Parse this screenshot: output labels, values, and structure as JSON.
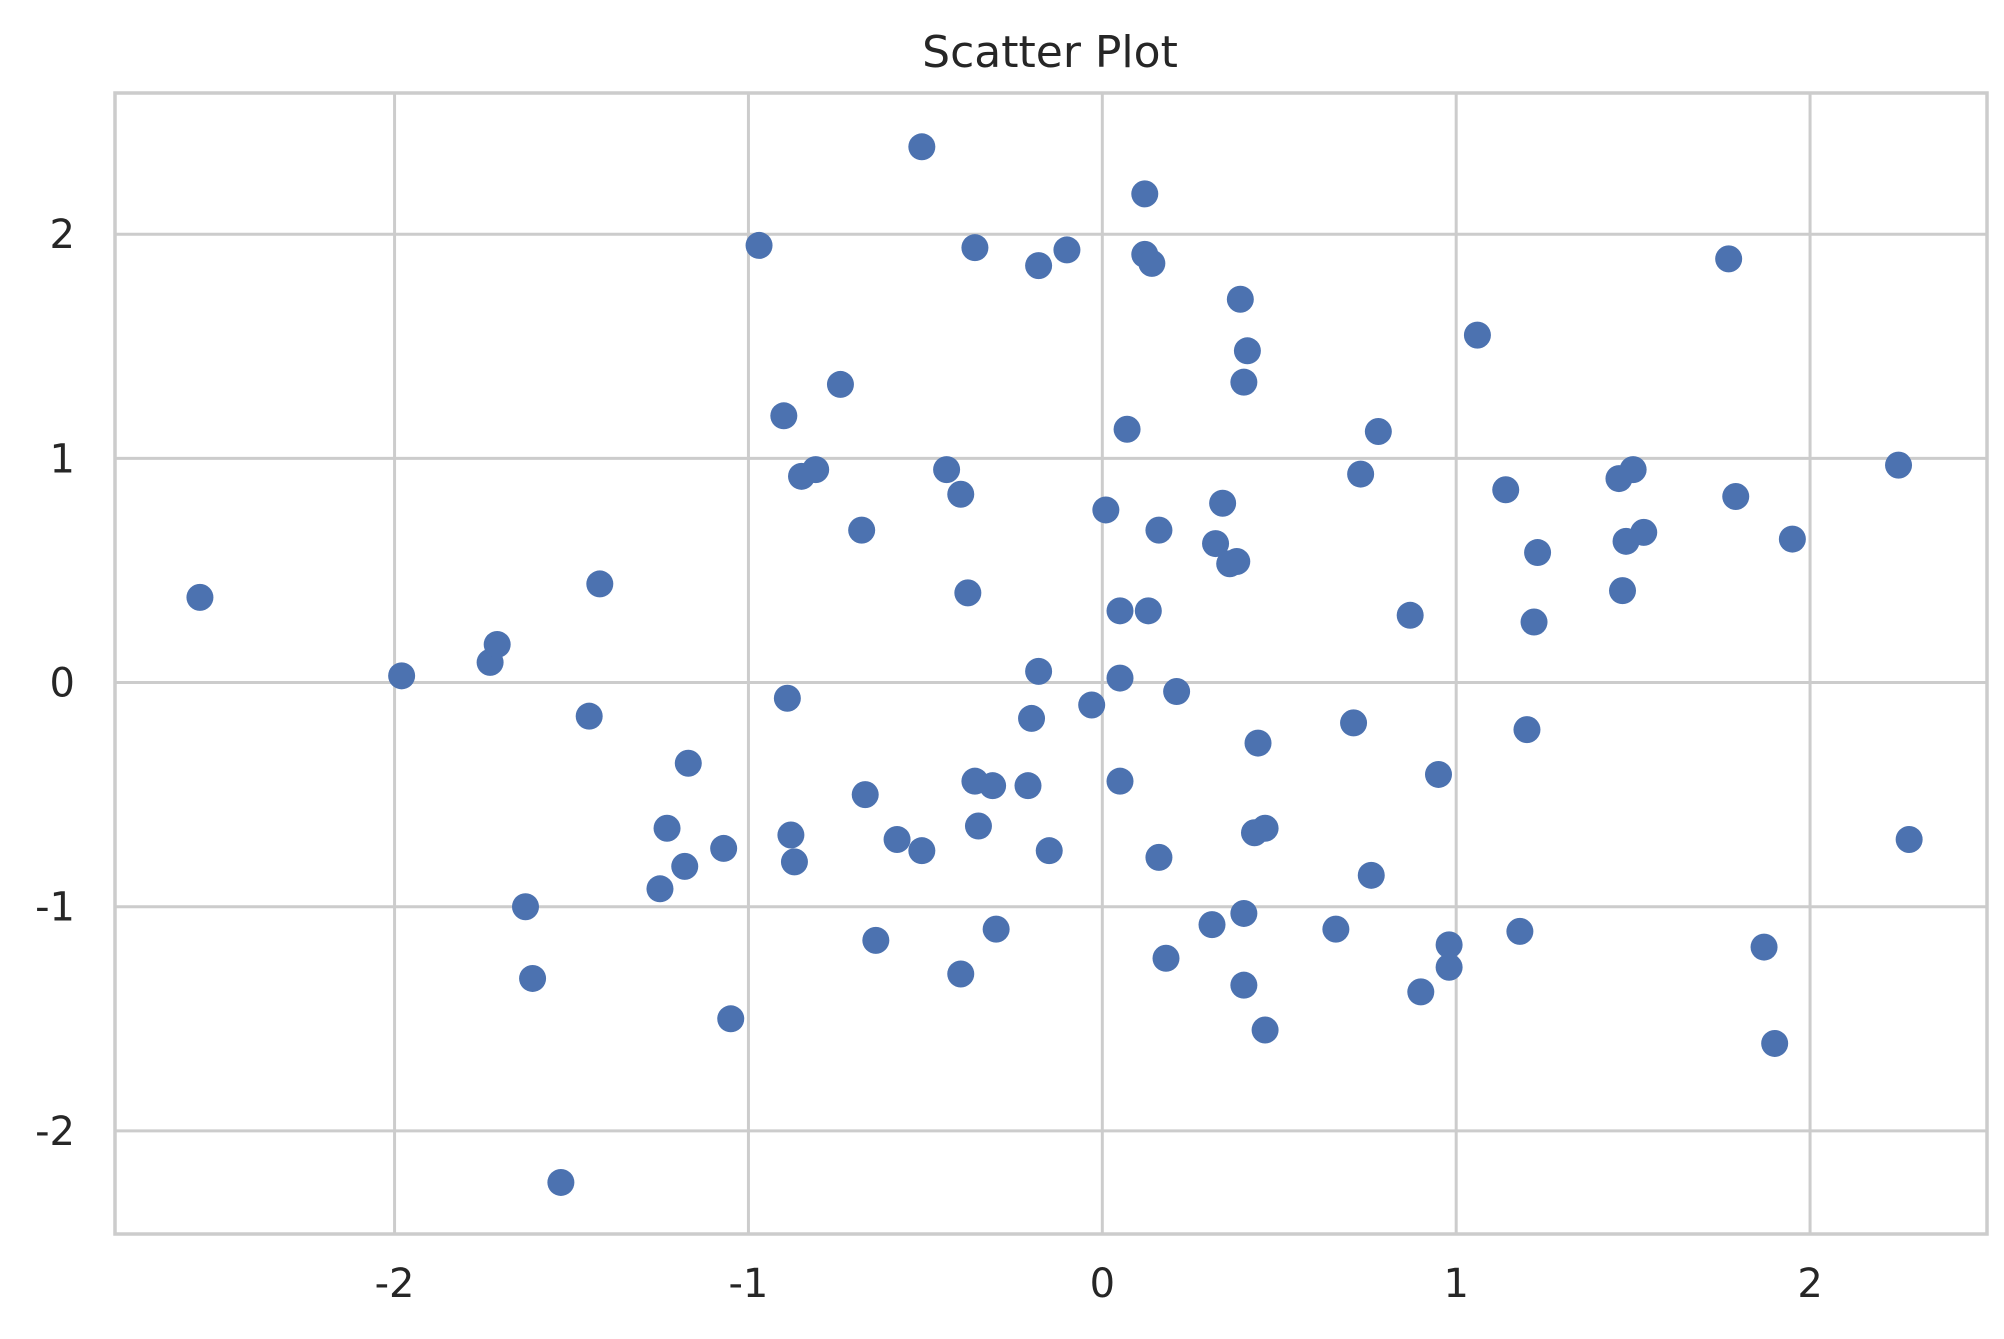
{
  "chart_data": {
    "type": "scatter",
    "title": "Scatter Plot",
    "xlabel": "",
    "ylabel": "",
    "xlim": [
      -2.79,
      2.5
    ],
    "ylim": [
      -2.46,
      2.63
    ],
    "grid": true,
    "color": "#4c72b0",
    "x_ticks": [
      -2,
      -1,
      0,
      1,
      2
    ],
    "x_tick_labels": [
      "-2",
      "-1",
      "0",
      "1",
      "2"
    ],
    "y_ticks": [
      -2,
      -1,
      0,
      1,
      2
    ],
    "y_tick_labels": [
      "-2",
      "-1",
      "0",
      "1",
      "2"
    ],
    "points": [
      [
        -2.55,
        0.38
      ],
      [
        -1.98,
        0.03
      ],
      [
        -1.73,
        0.09
      ],
      [
        -1.71,
        0.17
      ],
      [
        -1.63,
        -1.0
      ],
      [
        -1.61,
        -1.32
      ],
      [
        -1.53,
        -2.23
      ],
      [
        -1.45,
        -0.15
      ],
      [
        -1.42,
        0.44
      ],
      [
        -1.25,
        -0.92
      ],
      [
        -1.23,
        -0.65
      ],
      [
        -1.18,
        -0.82
      ],
      [
        -1.17,
        -0.36
      ],
      [
        -1.07,
        -0.74
      ],
      [
        -1.05,
        -1.5
      ],
      [
        -0.97,
        1.95
      ],
      [
        -0.9,
        1.19
      ],
      [
        -0.89,
        -0.07
      ],
      [
        -0.88,
        -0.68
      ],
      [
        -0.87,
        -0.8
      ],
      [
        -0.85,
        0.92
      ],
      [
        -0.81,
        0.95
      ],
      [
        -0.74,
        1.33
      ],
      [
        -0.68,
        0.68
      ],
      [
        -0.67,
        -0.5
      ],
      [
        -0.64,
        -1.15
      ],
      [
        -0.58,
        -0.7
      ],
      [
        -0.51,
        2.39
      ],
      [
        -0.51,
        -0.75
      ],
      [
        -0.44,
        0.95
      ],
      [
        -0.4,
        0.84
      ],
      [
        -0.4,
        -1.3
      ],
      [
        -0.38,
        0.4
      ],
      [
        -0.36,
        1.94
      ],
      [
        -0.36,
        -0.44
      ],
      [
        -0.35,
        -0.64
      ],
      [
        -0.31,
        -0.46
      ],
      [
        -0.3,
        -1.1
      ],
      [
        -0.21,
        -0.46
      ],
      [
        -0.2,
        -0.16
      ],
      [
        -0.18,
        1.86
      ],
      [
        -0.18,
        0.05
      ],
      [
        -0.15,
        -0.75
      ],
      [
        -0.1,
        1.93
      ],
      [
        -0.03,
        -0.1
      ],
      [
        0.01,
        0.77
      ],
      [
        0.05,
        -0.44
      ],
      [
        0.05,
        0.32
      ],
      [
        0.05,
        0.02
      ],
      [
        0.07,
        1.13
      ],
      [
        0.12,
        2.18
      ],
      [
        0.12,
        1.91
      ],
      [
        0.13,
        0.32
      ],
      [
        0.14,
        1.87
      ],
      [
        0.16,
        0.68
      ],
      [
        0.16,
        -0.78
      ],
      [
        0.18,
        -1.23
      ],
      [
        0.21,
        -0.04
      ],
      [
        0.31,
        -1.08
      ],
      [
        0.32,
        0.62
      ],
      [
        0.34,
        0.8
      ],
      [
        0.36,
        0.53
      ],
      [
        0.38,
        0.54
      ],
      [
        0.39,
        1.71
      ],
      [
        0.4,
        1.34
      ],
      [
        0.4,
        -1.35
      ],
      [
        0.4,
        -1.03
      ],
      [
        0.41,
        1.48
      ],
      [
        0.43,
        -0.67
      ],
      [
        0.44,
        -0.27
      ],
      [
        0.46,
        -0.65
      ],
      [
        0.46,
        -1.55
      ],
      [
        0.66,
        -1.1
      ],
      [
        0.71,
        -0.18
      ],
      [
        0.73,
        0.93
      ],
      [
        0.76,
        -0.86
      ],
      [
        0.78,
        1.12
      ],
      [
        0.87,
        0.3
      ],
      [
        0.9,
        -1.38
      ],
      [
        0.95,
        -0.41
      ],
      [
        0.98,
        -1.17
      ],
      [
        0.98,
        -1.27
      ],
      [
        1.06,
        1.55
      ],
      [
        1.14,
        0.86
      ],
      [
        1.18,
        -1.11
      ],
      [
        1.2,
        -0.21
      ],
      [
        1.22,
        0.27
      ],
      [
        1.23,
        0.58
      ],
      [
        1.46,
        0.91
      ],
      [
        1.47,
        0.41
      ],
      [
        1.48,
        0.63
      ],
      [
        1.5,
        0.95
      ],
      [
        1.53,
        0.67
      ],
      [
        1.77,
        1.89
      ],
      [
        1.79,
        0.83
      ],
      [
        1.87,
        -1.18
      ],
      [
        1.9,
        -1.61
      ],
      [
        1.95,
        0.64
      ],
      [
        2.25,
        0.97
      ],
      [
        2.28,
        -0.7
      ]
    ]
  }
}
